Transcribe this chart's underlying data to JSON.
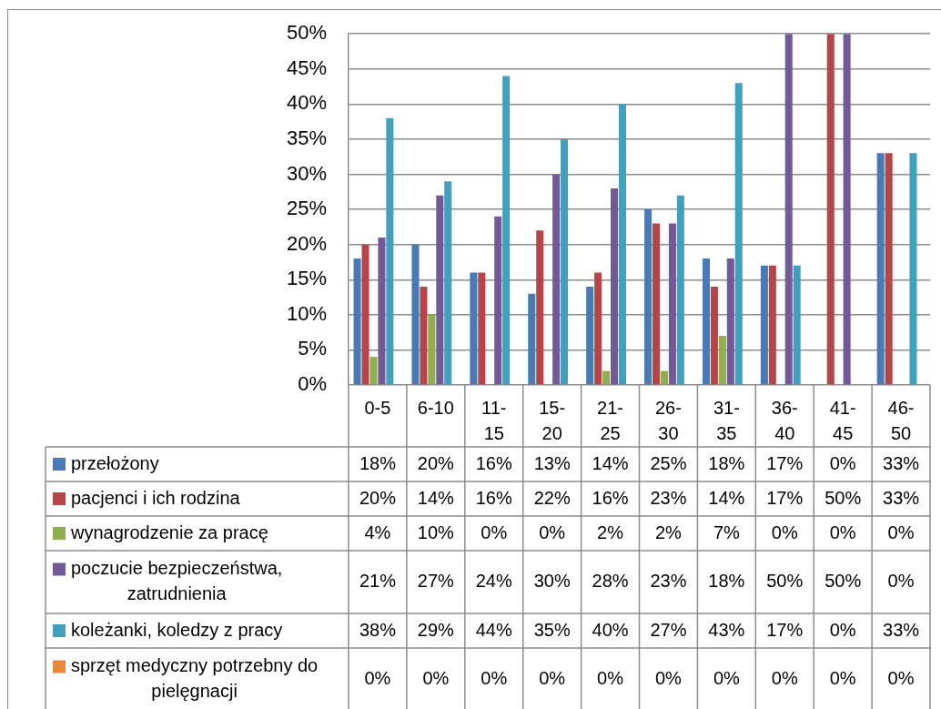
{
  "chart_data": {
    "type": "bar",
    "categories": [
      "0-5",
      "6-10",
      "11-15",
      "15-20",
      "21-25",
      "26-30",
      "31-35",
      "36-40",
      "41-45",
      "46-50"
    ],
    "series": [
      {
        "name": "przełożony",
        "color": "#4a7ab5",
        "values": [
          18,
          20,
          16,
          13,
          14,
          25,
          18,
          17,
          0,
          33
        ],
        "value_labels": [
          "18%",
          "20%",
          "16%",
          "13%",
          "14%",
          "25%",
          "18%",
          "17%",
          "0%",
          "33%"
        ]
      },
      {
        "name": "pacjenci i ich rodzina",
        "color": "#b4464a",
        "values": [
          20,
          14,
          16,
          22,
          16,
          23,
          14,
          17,
          50,
          33
        ],
        "value_labels": [
          "20%",
          "14%",
          "16%",
          "22%",
          "16%",
          "23%",
          "14%",
          "17%",
          "50%",
          "33%"
        ]
      },
      {
        "name": "wynagrodzenie za pracę",
        "color": "#8eae50",
        "values": [
          4,
          10,
          0,
          0,
          2,
          2,
          7,
          0,
          0,
          0
        ],
        "value_labels": [
          "4%",
          "10%",
          "0%",
          "0%",
          "2%",
          "2%",
          "7%",
          "0%",
          "0%",
          "0%"
        ]
      },
      {
        "name": "poczucie bezpieczeństwa, zatrudnienia",
        "color": "#725a99",
        "values": [
          21,
          27,
          24,
          30,
          28,
          23,
          18,
          50,
          50,
          0
        ],
        "value_labels": [
          "21%",
          "27%",
          "24%",
          "30%",
          "28%",
          "23%",
          "18%",
          "50%",
          "50%",
          "0%"
        ]
      },
      {
        "name": "koleżanki, koledzy z pracy",
        "color": "#42a0bd",
        "values": [
          38,
          29,
          44,
          35,
          40,
          27,
          43,
          17,
          0,
          33
        ],
        "value_labels": [
          "38%",
          "29%",
          "44%",
          "35%",
          "40%",
          "27%",
          "43%",
          "17%",
          "0%",
          "33%"
        ]
      },
      {
        "name": "sprzęt medyczny potrzebny do pielęgnacji",
        "color": "#e8883e",
        "values": [
          0,
          0,
          0,
          0,
          0,
          0,
          0,
          0,
          0,
          0
        ],
        "value_labels": [
          "0%",
          "0%",
          "0%",
          "0%",
          "0%",
          "0%",
          "0%",
          "0%",
          "0%",
          "0%"
        ]
      }
    ],
    "ylim": [
      0,
      50
    ],
    "yticks": [
      {
        "value": 0,
        "label": "0%"
      },
      {
        "value": 5,
        "label": "5%"
      },
      {
        "value": 10,
        "label": "10%"
      },
      {
        "value": 15,
        "label": "15%"
      },
      {
        "value": 20,
        "label": "20%"
      },
      {
        "value": 25,
        "label": "25%"
      },
      {
        "value": 30,
        "label": "30%"
      },
      {
        "value": 35,
        "label": "35%"
      },
      {
        "value": 40,
        "label": "40%"
      },
      {
        "value": 45,
        "label": "45%"
      },
      {
        "value": 50,
        "label": "50%"
      }
    ],
    "grid": "y",
    "legend": "bottom"
  }
}
